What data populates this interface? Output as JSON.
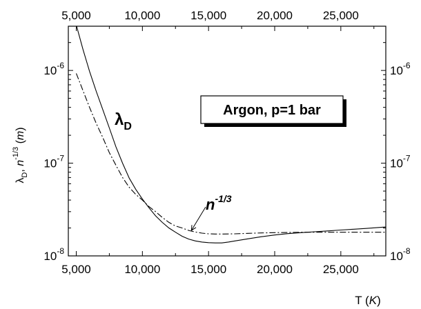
{
  "chart_data": {
    "type": "line",
    "title": "",
    "xlabel_base": "T (",
    "xlabel_unit": "K",
    "xlabel_close": ")",
    "ylabel": {
      "lambda": "λ",
      "lambda_sub": "D",
      "sep": ", ",
      "n": "n",
      "n_sup": "-1/3",
      "open": " (",
      "unit": "m",
      "close": ")"
    },
    "xlim": [
      4400,
      28400
    ],
    "ylim": [
      1e-08,
      3e-06
    ],
    "yscale": "log",
    "x_ticks": [
      5000,
      10000,
      15000,
      20000,
      25000
    ],
    "x_tick_labels": [
      "5,000",
      "10,000",
      "15,000",
      "20,000",
      "25,000"
    ],
    "y_ticks": [
      {
        "value": 1e-06,
        "base": "10",
        "exp": "-6"
      },
      {
        "value": 1e-07,
        "base": "10",
        "exp": "-7"
      },
      {
        "value": 1e-08,
        "base": "10",
        "exp": "-8"
      }
    ],
    "grid": false,
    "series": [
      {
        "name": "λD",
        "name_main": "λ",
        "name_sub": "D",
        "style": "solid",
        "x": [
          5000,
          5500,
          6000,
          6500,
          7000,
          7500,
          8000,
          8500,
          9000,
          9500,
          10000,
          10500,
          11000,
          11500,
          12000,
          12500,
          13000,
          13500,
          14000,
          14500,
          15000,
          15500,
          16000,
          16500,
          17000,
          18000,
          19000,
          20000,
          21000,
          22000,
          23000,
          24000,
          25000,
          26000,
          27000,
          28400
        ],
        "y": [
          3.1e-06,
          1.7e-06,
          9.8e-07,
          6e-07,
          3.8e-07,
          2.4e-07,
          1.5e-07,
          1e-07,
          6.9e-08,
          5.2e-08,
          4.1e-08,
          3.3e-08,
          2.7e-08,
          2.3e-08,
          2e-08,
          1.8e-08,
          1.63e-08,
          1.52e-08,
          1.45e-08,
          1.41e-08,
          1.39e-08,
          1.38e-08,
          1.38e-08,
          1.41e-08,
          1.45e-08,
          1.53e-08,
          1.61e-08,
          1.68e-08,
          1.74e-08,
          1.78e-08,
          1.82e-08,
          1.86e-08,
          1.9e-08,
          1.94e-08,
          1.98e-08,
          2.05e-08
        ]
      },
      {
        "name": "n-1/3",
        "name_main": "n",
        "name_sup": "-1/3",
        "style": "dashdot",
        "x": [
          5000,
          5500,
          6000,
          6500,
          7000,
          7500,
          8000,
          8500,
          9000,
          9500,
          10000,
          10500,
          11000,
          11500,
          12000,
          12500,
          13000,
          13500,
          14000,
          14500,
          15000,
          15500,
          16000,
          17000,
          18000,
          19000,
          20000,
          21000,
          22000,
          23000,
          24000,
          25000,
          26000,
          27000,
          28400
        ],
        "y": [
          9.3e-07,
          6.1e-07,
          4e-07,
          2.7e-07,
          1.9e-07,
          1.3e-07,
          9.5e-08,
          7e-08,
          5.5e-08,
          4.6e-08,
          4e-08,
          3.4e-08,
          3e-08,
          2.6e-08,
          2.3e-08,
          2.1e-08,
          2e-08,
          1.88e-08,
          1.81e-08,
          1.76e-08,
          1.73e-08,
          1.72e-08,
          1.72e-08,
          1.73e-08,
          1.75e-08,
          1.77e-08,
          1.78e-08,
          1.79e-08,
          1.8e-08,
          1.8e-08,
          1.8e-08,
          1.8e-08,
          1.8e-08,
          1.8e-08,
          1.8e-08
        ]
      }
    ],
    "annotation_box": "Argon, p=1 bar",
    "arrow_target": {
      "x": 13700,
      "y": 1.88e-08
    }
  }
}
